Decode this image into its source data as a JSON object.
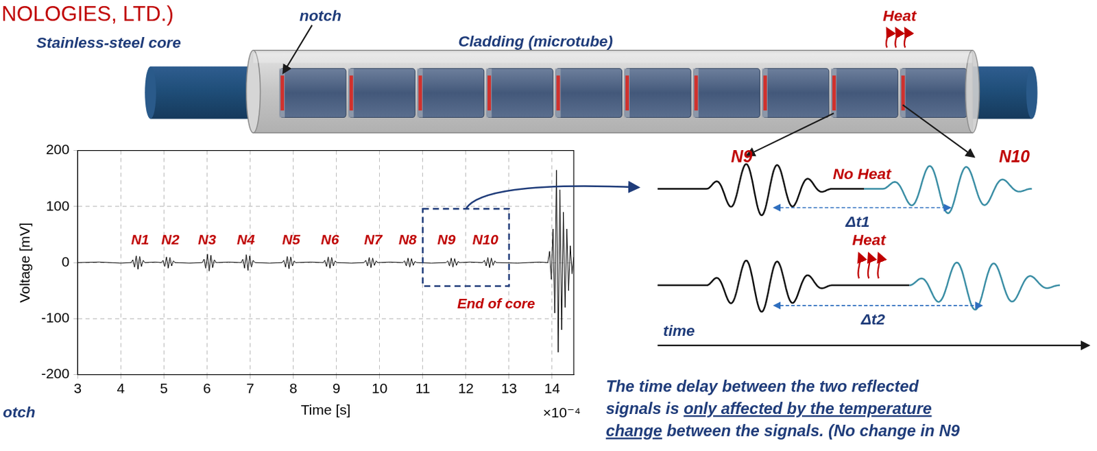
{
  "header": {
    "title_fragment": "NOLOGIES, LTD.)"
  },
  "rod_diagram": {
    "core_label": "Stainless-steel core",
    "cladding_label": "Cladding (microtube)",
    "notch_label": "notch",
    "heat_label": "Heat",
    "notches": 10
  },
  "side_label": "otch",
  "chart_data": {
    "type": "line",
    "x_label": "Time [s]",
    "x_scale_label": "×10⁻⁴",
    "y_label": "Voltage [mV]",
    "xlim": [
      3,
      14.5
    ],
    "xticks": [
      3,
      4,
      5,
      6,
      7,
      8,
      9,
      10,
      11,
      12,
      13,
      14
    ],
    "ylim": [
      -200,
      200
    ],
    "yticks": [
      -200,
      -100,
      0,
      100,
      200
    ],
    "grid": true,
    "color": "#000000",
    "x": [
      3.0,
      3.5,
      4.0,
      4.24,
      4.28,
      4.32,
      4.36,
      4.4,
      4.44,
      4.48,
      4.52,
      4.56,
      4.8,
      4.94,
      4.98,
      5.02,
      5.06,
      5.1,
      5.14,
      5.18,
      5.22,
      5.26,
      5.6,
      5.89,
      5.93,
      5.97,
      6.01,
      6.05,
      6.09,
      6.13,
      6.17,
      6.21,
      6.5,
      6.79,
      6.83,
      6.87,
      6.91,
      6.95,
      6.99,
      7.03,
      7.07,
      7.11,
      7.45,
      7.74,
      7.78,
      7.82,
      7.86,
      7.9,
      7.94,
      7.98,
      8.02,
      8.06,
      8.4,
      8.69,
      8.73,
      8.77,
      8.81,
      8.85,
      8.89,
      8.93,
      8.97,
      9.01,
      9.35,
      9.64,
      9.68,
      9.72,
      9.76,
      9.8,
      9.84,
      9.88,
      9.92,
      9.96,
      10.25,
      10.54,
      10.58,
      10.62,
      10.66,
      10.7,
      10.74,
      10.78,
      10.82,
      10.86,
      11.2,
      11.54,
      11.58,
      11.62,
      11.66,
      11.7,
      11.74,
      11.78,
      11.82,
      11.86,
      12.1,
      12.39,
      12.43,
      12.47,
      12.51,
      12.55,
      12.59,
      12.63,
      12.67,
      12.71,
      13.2,
      13.7,
      13.9,
      13.94,
      13.98,
      14.02,
      14.06,
      14.1,
      14.14,
      14.18,
      14.22,
      14.26,
      14.3,
      14.34,
      14.38,
      14.42,
      14.46,
      14.5
    ],
    "values": [
      0,
      1,
      -1,
      0,
      5,
      -8,
      12,
      -12,
      11,
      -7,
      4,
      0,
      1,
      0,
      4,
      -7,
      10,
      -10,
      9,
      -6,
      3,
      0,
      -1,
      0,
      6,
      -10,
      15,
      -15,
      13,
      -9,
      5,
      0,
      1,
      0,
      6,
      -10,
      14,
      -14,
      12,
      -8,
      4,
      0,
      -1,
      0,
      4,
      -8,
      11,
      -11,
      10,
      -6,
      3,
      0,
      1,
      0,
      4,
      -7,
      10,
      -10,
      9,
      -6,
      3,
      0,
      -1,
      0,
      4,
      -6,
      9,
      -9,
      8,
      -5,
      3,
      0,
      1,
      0,
      3,
      -6,
      8,
      -8,
      7,
      -5,
      2,
      0,
      -1,
      0,
      3,
      -6,
      8,
      -8,
      7,
      -5,
      2,
      0,
      1,
      0,
      4,
      -6,
      9,
      -9,
      8,
      -5,
      3,
      0,
      -1,
      1,
      0,
      20,
      -30,
      60,
      -90,
      165,
      -160,
      130,
      -120,
      90,
      -80,
      60,
      -50,
      30,
      -20,
      10
    ],
    "annotations": [
      {
        "text": "N1",
        "x": 4.45,
        "y": 40
      },
      {
        "text": "N2",
        "x": 5.15,
        "y": 40
      },
      {
        "text": "N3",
        "x": 6.0,
        "y": 40
      },
      {
        "text": "N4",
        "x": 6.9,
        "y": 40
      },
      {
        "text": "N5",
        "x": 7.95,
        "y": 40
      },
      {
        "text": "N6",
        "x": 8.85,
        "y": 40
      },
      {
        "text": "N7",
        "x": 9.85,
        "y": 40
      },
      {
        "text": "N8",
        "x": 10.65,
        "y": 40
      },
      {
        "text": "N9",
        "x": 11.55,
        "y": 40
      },
      {
        "text": "N10",
        "x": 12.45,
        "y": 40
      },
      {
        "text": "End of core",
        "x": 12.7,
        "y": -75
      }
    ],
    "highlight": {
      "xlim": [
        11,
        13
      ],
      "ylim": [
        -42,
        96
      ]
    }
  },
  "signal_schematic": {
    "first_reflection": "N9",
    "second_reflection": "N10",
    "rows": [
      {
        "state_label": "No Heat",
        "delay_label": "Δt1"
      },
      {
        "state_label": "Heat",
        "delay_label": "Δt2"
      }
    ],
    "time_axis_label": "time"
  },
  "caption": {
    "lines": [
      [
        {
          "text": "The time delay between the two reflected"
        }
      ],
      [
        {
          "text": "signals is "
        },
        {
          "text": "only affected by the temperature",
          "underline": true
        }
      ],
      [
        {
          "text": "change",
          "underline": true
        },
        {
          "text": " between the signals. (No change in N9"
        }
      ]
    ]
  }
}
